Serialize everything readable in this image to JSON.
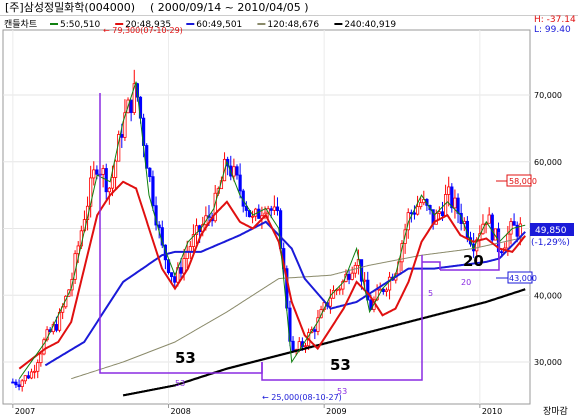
{
  "header": {
    "title": "[주]삼성정밀화학(004000)",
    "period": "( 2000/09/14 ~ 2010/04/05 )",
    "chart_kind": "캔들차트",
    "ma_legend": [
      {
        "label": "5:50,510",
        "color": "#108010"
      },
      {
        "label": "20:48,935",
        "color": "#e01010"
      },
      {
        "label": "60:49,501",
        "color": "#1a1ad8"
      },
      {
        "label": "120:48,676",
        "color": "#8a8a6a"
      },
      {
        "label": "240:40,919",
        "color": "#000000"
      }
    ],
    "hl_box": {
      "high": "H: -37.14",
      "low": "L: 99.40"
    }
  },
  "annotations": {
    "max_label": "← 79,300(07-10-29)",
    "min_label": "← 25,000(08-10-27)",
    "big_53_left": "53",
    "big_53_right": "53",
    "big_20": "20",
    "small_53_left": "53",
    "small_53_right": "53",
    "small_5": "5",
    "small_20": "20"
  },
  "price_boxes": {
    "upper": "58,000",
    "current": "49,850",
    "change": "(-1,29%)",
    "lower": "43,000"
  },
  "footer": {
    "corner_label": "장마감"
  },
  "colors": {
    "up": "#ff0000",
    "down": "#0000ff",
    "ma5": "#108010",
    "ma20": "#e01010",
    "ma60": "#1a1ad8",
    "ma120": "#8a8a6a",
    "ma240": "#000000",
    "annotation": "#8a2be2"
  },
  "chart_data": {
    "type": "candlestick",
    "title": "[주]삼성정밀화학(004000)",
    "ylim": [
      25000,
      80000
    ],
    "y_ticks": [
      30000,
      40000,
      50000,
      60000,
      70000
    ],
    "y_tick_labels": [
      "30,000",
      "40,000",
      "50,000",
      "60,000",
      "70,000"
    ],
    "x_ticks": [
      "2007",
      "2008",
      "2009",
      "2010"
    ],
    "x_tick_dates": [
      "2007-01",
      "2008-01",
      "2009-01",
      "2010-01"
    ],
    "x_range": [
      "2006-12",
      "2010-04"
    ],
    "moving_averages": [
      {
        "name": "5",
        "last": 50510
      },
      {
        "name": "20",
        "last": 48935
      },
      {
        "name": "60",
        "last": 49501
      },
      {
        "name": "120",
        "last": 48676
      },
      {
        "name": "240",
        "last": 40919
      }
    ],
    "max_point": {
      "date": "2007-10-29",
      "value": 79300
    },
    "min_point": {
      "date": "2008-10-27",
      "value": 25000
    },
    "reference_levels": [
      58000,
      43000
    ],
    "last_close": 49850,
    "change_pct": -1.29,
    "ma20_key": [
      [
        "2007-01",
        29000
      ],
      [
        "2007-02",
        30500
      ],
      [
        "2007-03",
        32000
      ],
      [
        "2007-04",
        33000
      ],
      [
        "2007-05",
        36000
      ],
      [
        "2007-06",
        44000
      ],
      [
        "2007-07",
        52000
      ],
      [
        "2007-08",
        55000
      ],
      [
        "2007-09",
        57000
      ],
      [
        "2007-10",
        56000
      ],
      [
        "2007-11",
        50000
      ],
      [
        "2007-12",
        44000
      ],
      [
        "2008-01",
        41000
      ],
      [
        "2008-02",
        44000
      ],
      [
        "2008-03",
        49000
      ],
      [
        "2008-04",
        52000
      ],
      [
        "2008-05",
        54000
      ],
      [
        "2008-06",
        51000
      ],
      [
        "2008-07",
        50000
      ],
      [
        "2008-08",
        52000
      ],
      [
        "2008-09",
        48000
      ],
      [
        "2008-10",
        39000
      ],
      [
        "2008-11",
        34000
      ],
      [
        "2008-12",
        32000
      ],
      [
        "2009-01",
        35000
      ],
      [
        "2009-02",
        38000
      ],
      [
        "2009-03",
        42000
      ],
      [
        "2009-04",
        40000
      ],
      [
        "2009-05",
        37000
      ],
      [
        "2009-06",
        38000
      ],
      [
        "2009-07",
        42000
      ],
      [
        "2009-08",
        48000
      ],
      [
        "2009-09",
        51000
      ],
      [
        "2009-10",
        52000
      ],
      [
        "2009-11",
        49000
      ],
      [
        "2009-12",
        48000
      ],
      [
        "2010-01",
        48500
      ],
      [
        "2010-02",
        47000
      ],
      [
        "2010-03",
        46500
      ],
      [
        "2010-04",
        48900
      ]
    ],
    "ma60_key": [
      [
        "2007-03",
        29500
      ],
      [
        "2007-06",
        33000
      ],
      [
        "2007-09",
        42000
      ],
      [
        "2007-12",
        46000
      ],
      [
        "2008-01",
        46500
      ],
      [
        "2008-03",
        46500
      ],
      [
        "2008-06",
        49000
      ],
      [
        "2008-08",
        51000
      ],
      [
        "2008-10",
        47000
      ],
      [
        "2008-11",
        42500
      ],
      [
        "2009-01",
        38000
      ],
      [
        "2009-03",
        39000
      ],
      [
        "2009-05",
        41500
      ],
      [
        "2009-07",
        44000
      ],
      [
        "2009-09",
        44000
      ],
      [
        "2009-11",
        44500
      ],
      [
        "2010-01",
        45000
      ],
      [
        "2010-02",
        45500
      ],
      [
        "2010-04",
        49500
      ]
    ],
    "ma120_key": [
      [
        "2007-05",
        27500
      ],
      [
        "2007-09",
        30000
      ],
      [
        "2008-01",
        33000
      ],
      [
        "2008-05",
        37500
      ],
      [
        "2008-09",
        42500
      ],
      [
        "2009-01",
        43000
      ],
      [
        "2009-04",
        44500
      ],
      [
        "2009-08",
        46000
      ],
      [
        "2009-12",
        47000
      ],
      [
        "2010-04",
        48700
      ]
    ],
    "ma240_key": [
      [
        "2007-09",
        25000
      ],
      [
        "2008-01",
        26500
      ],
      [
        "2008-05",
        29000
      ],
      [
        "2008-09",
        31000
      ],
      [
        "2009-01",
        33000
      ],
      [
        "2009-05",
        35000
      ],
      [
        "2009-09",
        37000
      ],
      [
        "2010-01",
        39000
      ],
      [
        "2010-04",
        40900
      ]
    ],
    "ma5_key": [
      [
        "2007-01",
        27500
      ],
      [
        "2007-03",
        33000
      ],
      [
        "2007-05",
        41000
      ],
      [
        "2007-07",
        58000
      ],
      [
        "2007-08",
        57000
      ],
      [
        "2007-09",
        66000
      ],
      [
        "2007-10",
        72000
      ],
      [
        "2007-11",
        55000
      ],
      [
        "2007-12",
        48000
      ],
      [
        "2008-01",
        43000
      ],
      [
        "2008-02",
        48000
      ],
      [
        "2008-03",
        50000
      ],
      [
        "2008-04",
        53000
      ],
      [
        "2008-05",
        60000
      ],
      [
        "2008-06",
        55000
      ],
      [
        "2008-07",
        52000
      ],
      [
        "2008-08",
        53000
      ],
      [
        "2008-09",
        50000
      ],
      [
        "2008-10",
        30000
      ],
      [
        "2008-11",
        33000
      ],
      [
        "2008-12",
        36000
      ],
      [
        "2009-01",
        40000
      ],
      [
        "2009-02",
        42000
      ],
      [
        "2009-03",
        47000
      ],
      [
        "2009-04",
        37500
      ],
      [
        "2009-05",
        41000
      ],
      [
        "2009-06",
        43000
      ],
      [
        "2009-07",
        51000
      ],
      [
        "2009-08",
        55000
      ],
      [
        "2009-09",
        52000
      ],
      [
        "2009-10",
        54000
      ],
      [
        "2009-11",
        52000
      ],
      [
        "2009-12",
        47000
      ],
      [
        "2010-01",
        51000
      ],
      [
        "2010-02",
        48000
      ],
      [
        "2010-03",
        50000
      ],
      [
        "2010-04",
        50500
      ]
    ],
    "close_key": [
      [
        "2007-01",
        27000
      ],
      [
        "2007-02",
        28500
      ],
      [
        "2007-03",
        33500
      ],
      [
        "2007-04",
        36000
      ],
      [
        "2007-05",
        42000
      ],
      [
        "2007-06",
        52000
      ],
      [
        "2007-07",
        60000
      ],
      [
        "2007-08",
        56000
      ],
      [
        "2007-09",
        66000
      ],
      [
        "2007-10",
        71000
      ],
      [
        "2007-11",
        58000
      ],
      [
        "2007-12",
        47000
      ],
      [
        "2008-01",
        42000
      ],
      [
        "2008-02",
        47000
      ],
      [
        "2008-03",
        50000
      ],
      [
        "2008-04",
        53000
      ],
      [
        "2008-05",
        60000
      ],
      [
        "2008-06",
        56000
      ],
      [
        "2008-07",
        51000
      ],
      [
        "2008-08",
        54000
      ],
      [
        "2008-09",
        51000
      ],
      [
        "2008-10",
        31000
      ],
      [
        "2008-11",
        33000
      ],
      [
        "2008-12",
        36000
      ],
      [
        "2009-01",
        40000
      ],
      [
        "2009-02",
        42000
      ],
      [
        "2009-03",
        46000
      ],
      [
        "2009-04",
        38000
      ],
      [
        "2009-05",
        41000
      ],
      [
        "2009-06",
        44000
      ],
      [
        "2009-07",
        52000
      ],
      [
        "2009-08",
        54000
      ],
      [
        "2009-09",
        51000
      ],
      [
        "2009-10",
        55000
      ],
      [
        "2009-11",
        52000
      ],
      [
        "2009-12",
        48000
      ],
      [
        "2010-01",
        52000
      ],
      [
        "2010-02",
        47000
      ],
      [
        "2010-03",
        50000
      ],
      [
        "2010-04",
        49850
      ]
    ]
  }
}
